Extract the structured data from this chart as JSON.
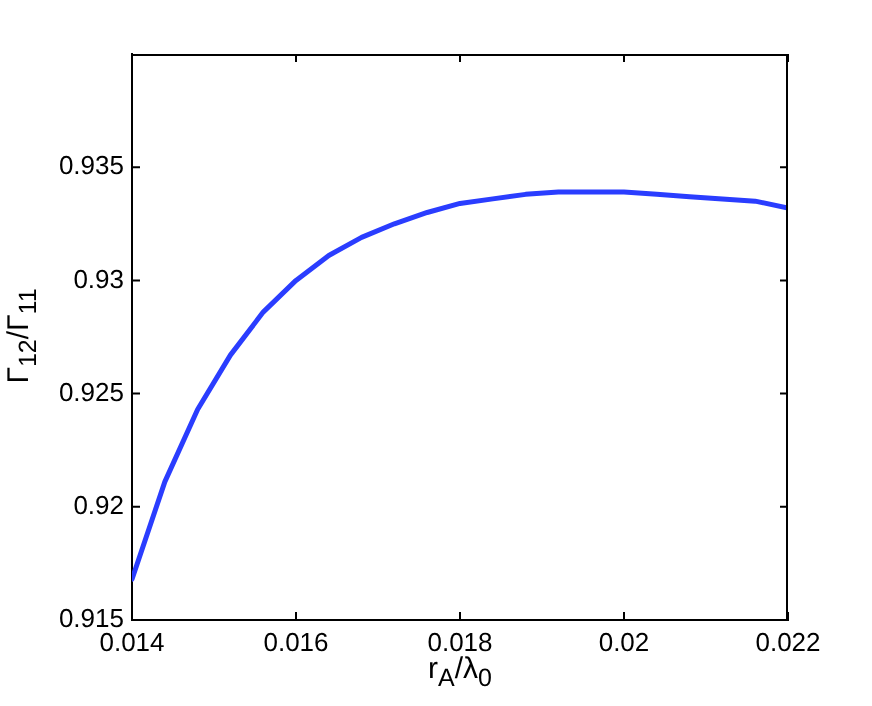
{
  "chart_data": {
    "type": "line",
    "xlabel": "r$_{A}$/λ$_{0}$",
    "ylabel": "Γ$_{12}$/Γ$_{11}$",
    "x": [
      0.014,
      0.0144,
      0.0148,
      0.0152,
      0.0156,
      0.016,
      0.0164,
      0.0168,
      0.0172,
      0.0176,
      0.018,
      0.0184,
      0.0188,
      0.0192,
      0.0196,
      0.02,
      0.0204,
      0.0208,
      0.0212,
      0.0216,
      0.022
    ],
    "series": [
      {
        "color": "#2a3dff",
        "values": [
          0.9168,
          0.9211,
          0.9243,
          0.9267,
          0.9286,
          0.93,
          0.9311,
          0.9319,
          0.9325,
          0.933,
          0.9334,
          0.9336,
          0.9338,
          0.9339,
          0.9339,
          0.9339,
          0.9338,
          0.9337,
          0.9336,
          0.9335,
          0.9332
        ]
      }
    ],
    "xlim": [
      0.014,
      0.022
    ],
    "xticks": [
      0.014,
      0.016,
      0.018,
      0.02,
      0.022
    ],
    "ylim": [
      0.915,
      0.94
    ],
    "yticks": [
      0.915,
      0.92,
      0.925,
      0.93,
      0.935
    ],
    "grid": false,
    "legend": false,
    "marker": "none",
    "line_style": "solid"
  }
}
